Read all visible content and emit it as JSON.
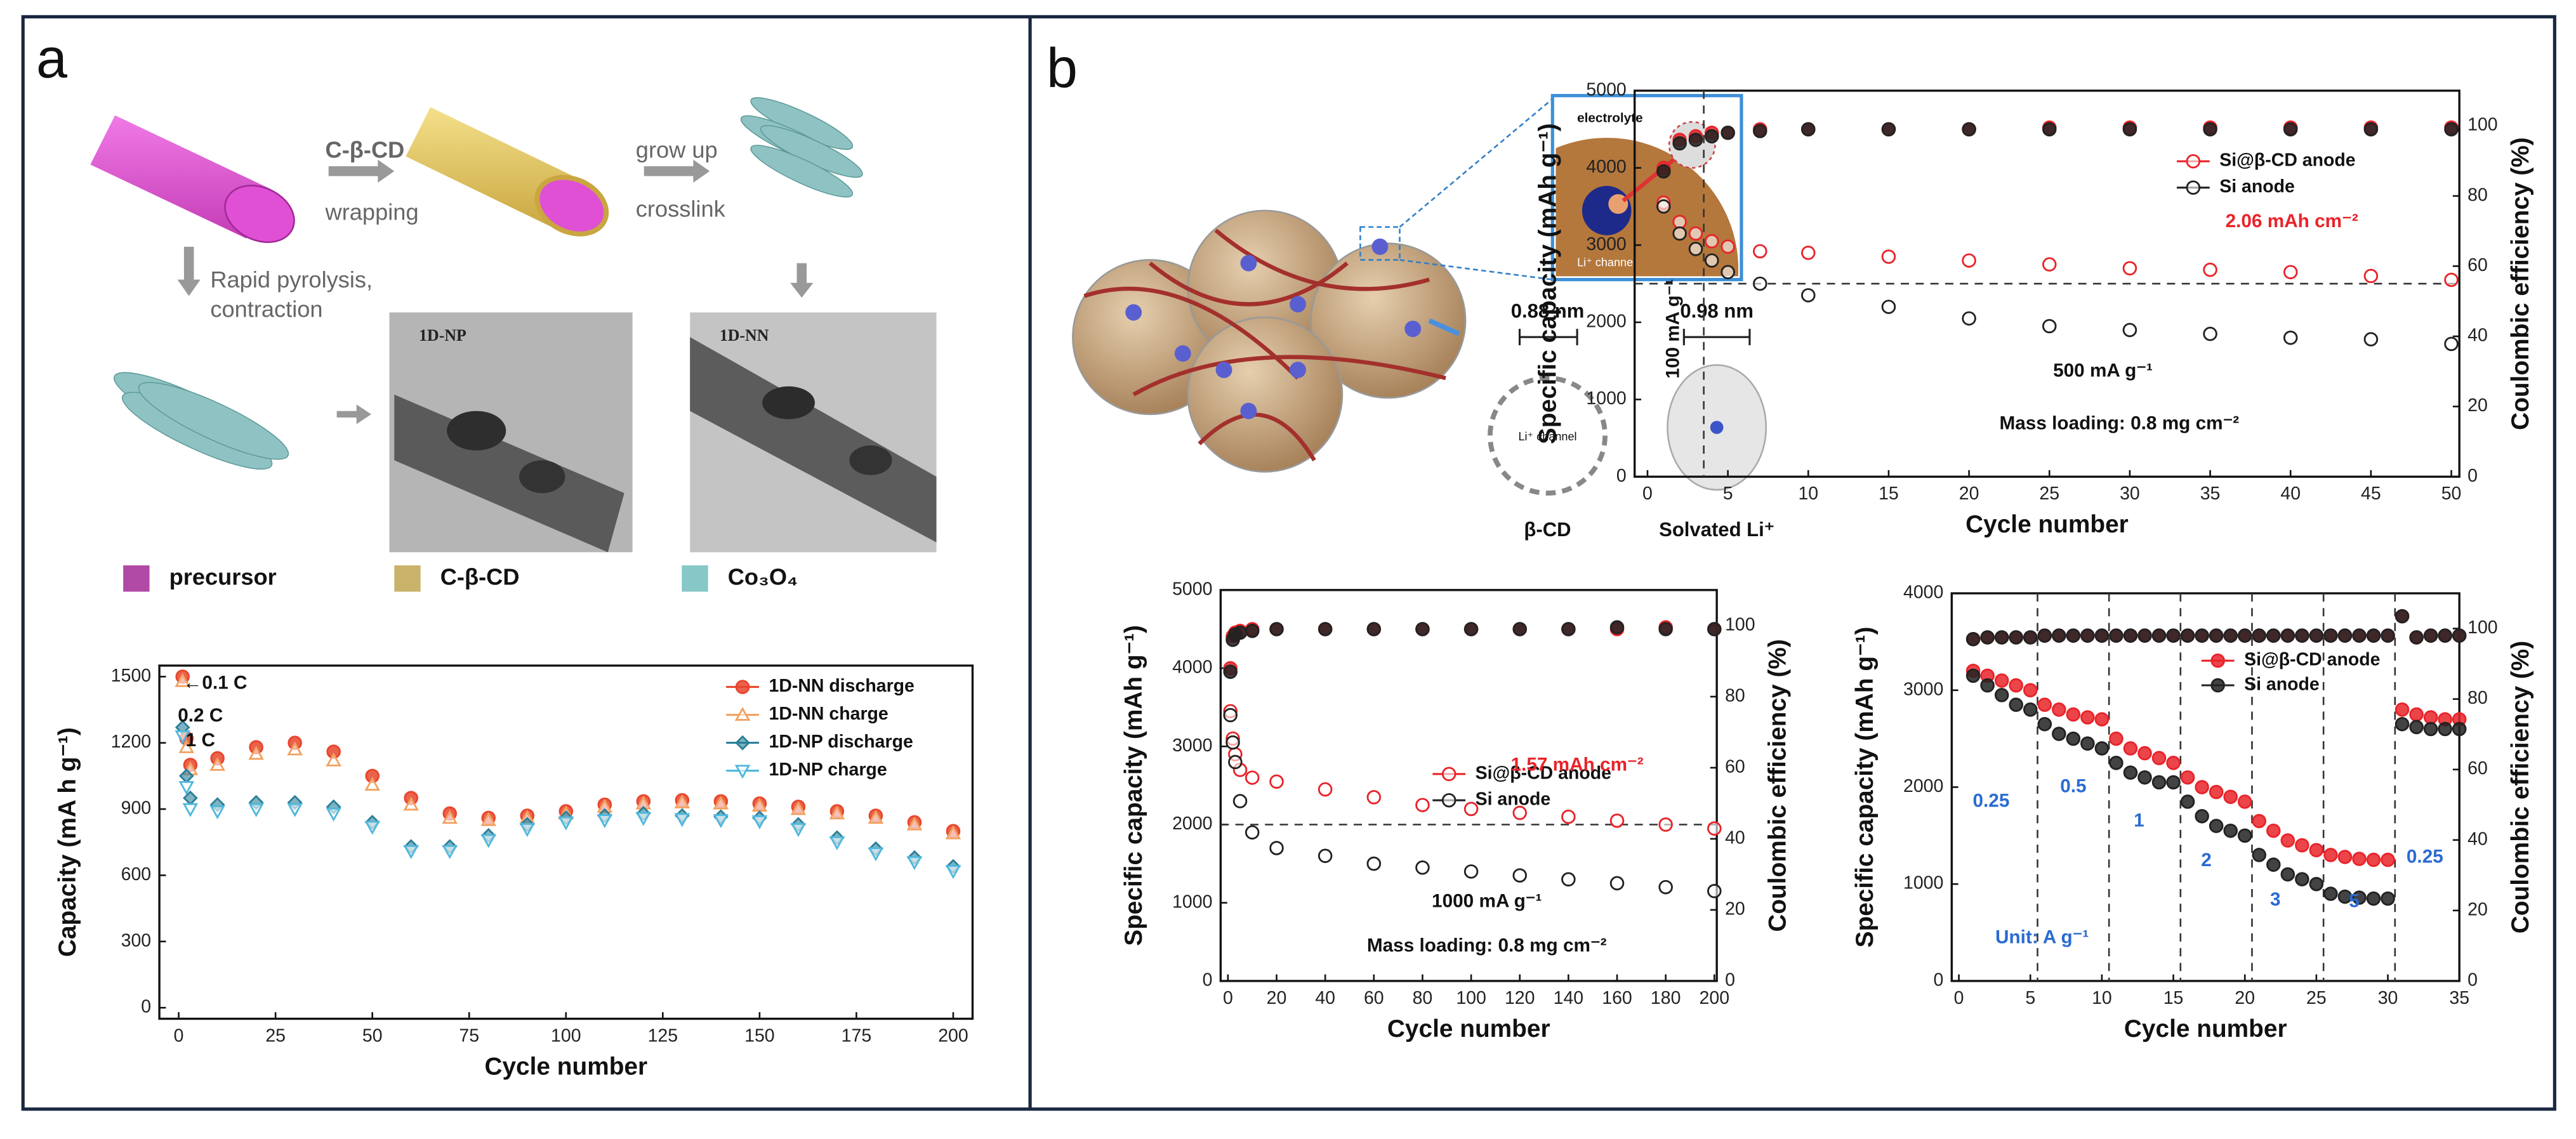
{
  "labels": {
    "panel_a": "a",
    "panel_b": "b",
    "wrap_agent": "C-β-CD",
    "wrapping": "wrapping",
    "grow_up": "grow up",
    "crosslink": "crosslink",
    "pyrolysis": "Rapid pyrolysis,",
    "contraction": "contraction",
    "tem_np": "1D-NP",
    "tem_nn": "1D-NN",
    "legend": [
      "precursor",
      "C-β-CD",
      "Co₃O₄"
    ],
    "legend_colors": [
      "#b04aa6",
      "#c9b36a",
      "#86c7c7"
    ],
    "electrolyte": "electrolyte",
    "li_channel_inset": "Li⁺ channel",
    "cd_size": "0.88 nm",
    "solv_size": "0.98 nm",
    "li_channel": "Li⁺ channel",
    "cd_name": "β-CD",
    "solvated": "Solvated Li⁺"
  },
  "chart_data": [
    {
      "type": "scatter",
      "xlabel": "Cycle number",
      "ylabel": "Capacity (mA h g⁻¹)",
      "xlim": [
        -5,
        205
      ],
      "ylim": [
        -50,
        1550
      ],
      "xticks": [
        0,
        25,
        50,
        75,
        100,
        125,
        150,
        175,
        200
      ],
      "yticks": [
        0,
        300,
        600,
        900,
        1200,
        1500
      ],
      "legend": "upper right",
      "x": [
        1,
        2,
        3,
        10,
        20,
        30,
        40,
        50,
        60,
        70,
        80,
        90,
        100,
        110,
        120,
        130,
        140,
        150,
        160,
        170,
        180,
        190,
        200
      ],
      "series": [
        {
          "name": "1D-NN discharge",
          "color": "#e8452c",
          "marker": "circle",
          "values": [
            1500,
            1220,
            1100,
            1130,
            1180,
            1200,
            1160,
            1050,
            950,
            880,
            860,
            870,
            890,
            920,
            935,
            940,
            935,
            925,
            910,
            890,
            870,
            840,
            800
          ]
        },
        {
          "name": "1D-NN charge",
          "color": "#f2a15f",
          "marker": "triangle",
          "values": [
            1480,
            1180,
            1080,
            1100,
            1150,
            1170,
            1120,
            1010,
            920,
            860,
            850,
            860,
            880,
            910,
            925,
            930,
            925,
            915,
            900,
            880,
            860,
            830,
            790
          ]
        },
        {
          "name": "1D-NP discharge",
          "color": "#2a7f99",
          "marker": "diamond",
          "values": [
            1270,
            1050,
            950,
            920,
            930,
            930,
            910,
            840,
            730,
            730,
            780,
            830,
            860,
            870,
            880,
            870,
            865,
            860,
            830,
            770,
            720,
            680,
            640
          ]
        },
        {
          "name": "1D-NP charge",
          "color": "#4fb8dc",
          "marker": "triangle-down",
          "values": [
            1230,
            1000,
            900,
            890,
            900,
            900,
            880,
            820,
            710,
            710,
            760,
            810,
            840,
            850,
            860,
            855,
            850,
            845,
            810,
            750,
            700,
            660,
            620
          ]
        }
      ],
      "annotations": [
        {
          "text": "←0.1 C",
          "color": "#111"
        },
        {
          "text": "0.2 C",
          "color": "#111"
        },
        {
          "text": "1 C",
          "color": "#111"
        }
      ]
    },
    {
      "type": "scatter",
      "xlabel": "Cycle number",
      "ylabel": "Specific capacity (mAh g⁻¹)",
      "y2label": "Coulombic efficiency (%)",
      "xlim": [
        -0.8,
        50.5
      ],
      "ylim": [
        0,
        5000
      ],
      "y2lim": [
        0,
        110
      ],
      "xticks": [
        0,
        5,
        10,
        15,
        20,
        25,
        30,
        35,
        40,
        45,
        50
      ],
      "yticks": [
        0,
        1000,
        2000,
        3000,
        4000,
        5000
      ],
      "y2ticks": [
        0,
        20,
        40,
        60,
        80,
        100
      ],
      "legend": "upper right",
      "hlines": [
        2500
      ],
      "vlines": [
        3.5
      ],
      "x": [
        1,
        2,
        3,
        4,
        5,
        7,
        10,
        15,
        20,
        25,
        30,
        35,
        40,
        45,
        50
      ],
      "series": [
        {
          "name": "Si@β-CD anode",
          "color": "#e8242a",
          "marker": "circle-open",
          "values": [
            3550,
            3300,
            3150,
            3050,
            2980,
            2920,
            2900,
            2850,
            2800,
            2750,
            2700,
            2680,
            2650,
            2600,
            2550
          ]
        },
        {
          "name": "Si anode",
          "color": "#222222",
          "marker": "circle-open",
          "values": [
            3500,
            3150,
            2950,
            2800,
            2650,
            2500,
            2350,
            2200,
            2050,
            1950,
            1900,
            1850,
            1800,
            1780,
            1720
          ]
        },
        {
          "color": "#e8242a",
          "marker": "circle",
          "axis": "y2",
          "values": [
            88,
            96,
            97,
            98,
            98,
            99,
            99,
            99,
            99,
            99.5,
            99.5,
            99.5,
            99.5,
            99.5,
            99.5
          ]
        },
        {
          "color": "#222222",
          "marker": "circle",
          "axis": "y2",
          "values": [
            87,
            95,
            96,
            97,
            98,
            98.5,
            99,
            99,
            99,
            99,
            99,
            99,
            99,
            99,
            99
          ]
        }
      ],
      "annotations": [
        {
          "text": "2.06 mAh cm⁻²",
          "color": "#e8242a"
        },
        {
          "text": "500 mA g⁻¹",
          "color": "#111"
        },
        {
          "text": "Mass loading: 0.8 mg cm⁻²",
          "color": "#111"
        },
        {
          "text": "100 mA g⁻¹",
          "color": "#111"
        }
      ]
    },
    {
      "type": "scatter",
      "xlabel": "Cycle number",
      "ylabel": "Specific capacity (mAh g⁻¹)",
      "y2label": "Coulombic efficiency (%)",
      "xlim": [
        -3,
        201
      ],
      "ylim": [
        0,
        5000
      ],
      "y2lim": [
        0,
        110
      ],
      "xticks": [
        0,
        20,
        40,
        60,
        80,
        100,
        120,
        140,
        160,
        180,
        200
      ],
      "yticks": [
        0,
        1000,
        2000,
        3000,
        4000,
        5000
      ],
      "y2ticks": [
        0,
        20,
        40,
        60,
        80,
        100
      ],
      "legend": "upper right",
      "hlines": [
        2000
      ],
      "x": [
        1,
        2,
        3,
        5,
        10,
        20,
        40,
        60,
        80,
        100,
        120,
        140,
        160,
        180,
        200
      ],
      "series": [
        {
          "name": "Si@β-CD anode",
          "color": "#e8242a",
          "marker": "circle-open",
          "values": [
            3450,
            3100,
            2900,
            2700,
            2600,
            2550,
            2450,
            2350,
            2250,
            2200,
            2150,
            2100,
            2050,
            2000,
            1950
          ]
        },
        {
          "name": "Si anode",
          "color": "#222222",
          "marker": "circle-open",
          "values": [
            3400,
            3050,
            2800,
            2300,
            1900,
            1700,
            1600,
            1500,
            1450,
            1400,
            1350,
            1300,
            1250,
            1200,
            1150
          ]
        },
        {
          "color": "#e8242a",
          "marker": "circle",
          "axis": "y2",
          "values": [
            88,
            97,
            98,
            98.5,
            99,
            99,
            99,
            99,
            99,
            99,
            99,
            99,
            99,
            99.5,
            99
          ]
        },
        {
          "color": "#222222",
          "marker": "circle",
          "axis": "y2",
          "values": [
            87,
            96,
            97.5,
            98,
            98.5,
            99,
            99,
            99,
            99,
            99,
            99,
            99,
            99.5,
            99,
            99
          ]
        }
      ],
      "annotations": [
        {
          "text": "1.57 mAh cm⁻²",
          "color": "#e8242a"
        },
        {
          "text": "1000 mA g⁻¹",
          "color": "#111"
        },
        {
          "text": "Mass loading: 0.8 mg cm⁻²",
          "color": "#111"
        }
      ]
    },
    {
      "type": "scatter",
      "xlabel": "Cycle number",
      "ylabel": "Specific capacity (mAh g⁻¹)",
      "y2label": "Coulombic efficiency (%)",
      "xlim": [
        -0.5,
        35
      ],
      "ylim": [
        0,
        4000
      ],
      "y2lim": [
        0,
        110
      ],
      "xticks": [
        0,
        5,
        10,
        15,
        20,
        25,
        30,
        35
      ],
      "yticks": [
        0,
        1000,
        2000,
        3000,
        4000
      ],
      "y2ticks": [
        0,
        20,
        40,
        60,
        80,
        100
      ],
      "legend": "upper right",
      "vlines": [
        5.5,
        10.5,
        15.5,
        20.5,
        25.5,
        30.5
      ],
      "x": [
        1,
        2,
        3,
        4,
        5,
        6,
        7,
        8,
        9,
        10,
        11,
        12,
        13,
        14,
        15,
        16,
        17,
        18,
        19,
        20,
        21,
        22,
        23,
        24,
        25,
        26,
        27,
        28,
        29,
        30,
        31,
        32,
        33,
        34,
        35
      ],
      "series": [
        {
          "name": "Si@β-CD anode",
          "color": "#e8242a",
          "marker": "circle",
          "values": [
            3200,
            3150,
            3100,
            3050,
            3000,
            2850,
            2800,
            2750,
            2720,
            2700,
            2500,
            2400,
            2350,
            2300,
            2250,
            2100,
            2000,
            1950,
            1900,
            1850,
            1650,
            1550,
            1450,
            1400,
            1350,
            1300,
            1280,
            1260,
            1250,
            1250,
            2800,
            2750,
            2720,
            2700,
            2700
          ]
        },
        {
          "name": "Si anode",
          "color": "#222222",
          "marker": "circle",
          "values": [
            3150,
            3050,
            2950,
            2850,
            2800,
            2650,
            2550,
            2500,
            2450,
            2400,
            2250,
            2150,
            2100,
            2050,
            2050,
            1850,
            1700,
            1600,
            1550,
            1500,
            1300,
            1200,
            1100,
            1050,
            1000,
            900,
            870,
            860,
            850,
            850,
            2650,
            2620,
            2600,
            2600,
            2600
          ]
        },
        {
          "color": "#e8242a",
          "marker": "circle",
          "axis": "y2",
          "values": [
            97,
            97.5,
            97.5,
            97.5,
            97.5,
            98,
            98,
            98,
            98,
            98,
            98,
            98,
            98,
            98,
            98,
            98,
            98,
            98,
            98,
            98,
            98,
            98,
            98,
            98,
            98,
            98,
            98,
            98,
            98,
            98,
            103.5,
            97.5,
            98,
            98,
            98
          ]
        },
        {
          "color": "#222222",
          "marker": "circle",
          "axis": "y2",
          "values": [
            97,
            97.5,
            97.5,
            97.5,
            97.5,
            98,
            98,
            98,
            98,
            98,
            98,
            98,
            98,
            98,
            98,
            98,
            98,
            98,
            98,
            98,
            98,
            98,
            98,
            98,
            98,
            98,
            98,
            98,
            98,
            98,
            103.5,
            97.5,
            98,
            98,
            98
          ]
        }
      ],
      "annotations": [
        {
          "text": "0.25",
          "color": "#2a6bd1"
        },
        {
          "text": "0.5",
          "color": "#2a6bd1"
        },
        {
          "text": "1",
          "color": "#2a6bd1"
        },
        {
          "text": "2",
          "color": "#2a6bd1"
        },
        {
          "text": "3",
          "color": "#2a6bd1"
        },
        {
          "text": "5",
          "color": "#2a6bd1"
        },
        {
          "text": "0.25",
          "color": "#2a6bd1"
        },
        {
          "text": "Unit: A g⁻¹",
          "color": "#2a6bd1"
        }
      ]
    }
  ]
}
